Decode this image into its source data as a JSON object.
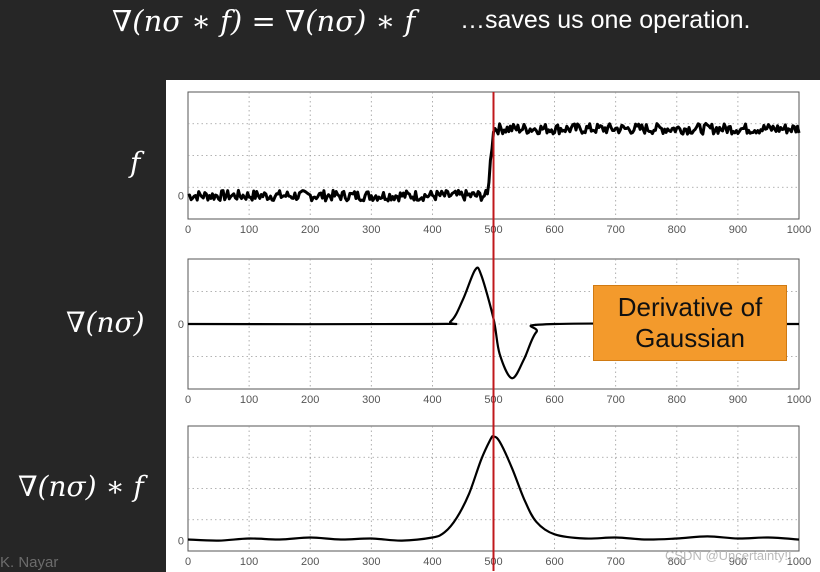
{
  "header": {
    "equation": "∇(nσ ∗ f) = ∇(nσ) ∗ f",
    "note": "…saves us one operation."
  },
  "row_labels": [
    "f",
    "∇(nσ)",
    "∇(nσ) ∗ f"
  ],
  "callout": {
    "line1": "Derivative of",
    "line2": "Gaussian"
  },
  "footer": {
    "credit": "K. Nayar",
    "watermark": "CSDN @Uncertainty!!"
  },
  "colors": {
    "background": "#262626",
    "signal": "#000000",
    "marker_line": "#c0181c",
    "callout_fill": "#f39a2c",
    "grid": "#9a9a9a"
  },
  "chart_data": [
    {
      "type": "line",
      "x_ticks": [
        "0",
        "100",
        "200",
        "300",
        "400",
        "500",
        "600",
        "700",
        "800",
        "900",
        "1000"
      ],
      "y_ticks": [
        "0"
      ],
      "xlim": [
        0,
        1000
      ],
      "ylim": [
        -0.35,
        1.55
      ],
      "grid": true,
      "signal": "noisy step from 0 to 1 at x = 500",
      "x": [
        0,
        490,
        495,
        500,
        1000
      ],
      "y": [
        0,
        0,
        0.3,
        1,
        1
      ],
      "marker_x": 500
    },
    {
      "type": "line",
      "x_ticks": [
        "0",
        "100",
        "200",
        "300",
        "400",
        "500",
        "600",
        "700",
        "800",
        "900",
        "1000"
      ],
      "y_ticks": [
        "0"
      ],
      "xlim": [
        0,
        1000
      ],
      "ylim": [
        -1.2,
        1.2
      ],
      "grid": true,
      "x": [
        0,
        400,
        430,
        450,
        470,
        480,
        500,
        510,
        530,
        550,
        570,
        600,
        1000
      ],
      "y": [
        0,
        0,
        0.05,
        0.45,
        1.0,
        0.9,
        0.1,
        -0.55,
        -1.0,
        -0.65,
        -0.15,
        0,
        0
      ],
      "marker_x": 500
    },
    {
      "type": "line",
      "x_ticks": [
        "0",
        "100",
        "200",
        "300",
        "400",
        "500",
        "600",
        "700",
        "800",
        "900",
        "1000"
      ],
      "y_ticks": [
        "0"
      ],
      "xlim": [
        0,
        1000
      ],
      "ylim": [
        -0.1,
        1.1
      ],
      "grid": true,
      "x": [
        0,
        50,
        100,
        150,
        200,
        250,
        300,
        350,
        400,
        420,
        440,
        460,
        480,
        495,
        500,
        510,
        530,
        550,
        570,
        600,
        650,
        700,
        750,
        800,
        850,
        900,
        950,
        1000
      ],
      "y": [
        0.01,
        0.0,
        0.02,
        0.01,
        0.03,
        0.01,
        0.02,
        0.0,
        0.03,
        0.08,
        0.22,
        0.45,
        0.78,
        0.97,
        1.0,
        0.95,
        0.7,
        0.4,
        0.18,
        0.06,
        0.02,
        0.03,
        0.01,
        0.02,
        0.04,
        0.02,
        0.03,
        0.01
      ],
      "marker_x": 500
    }
  ]
}
